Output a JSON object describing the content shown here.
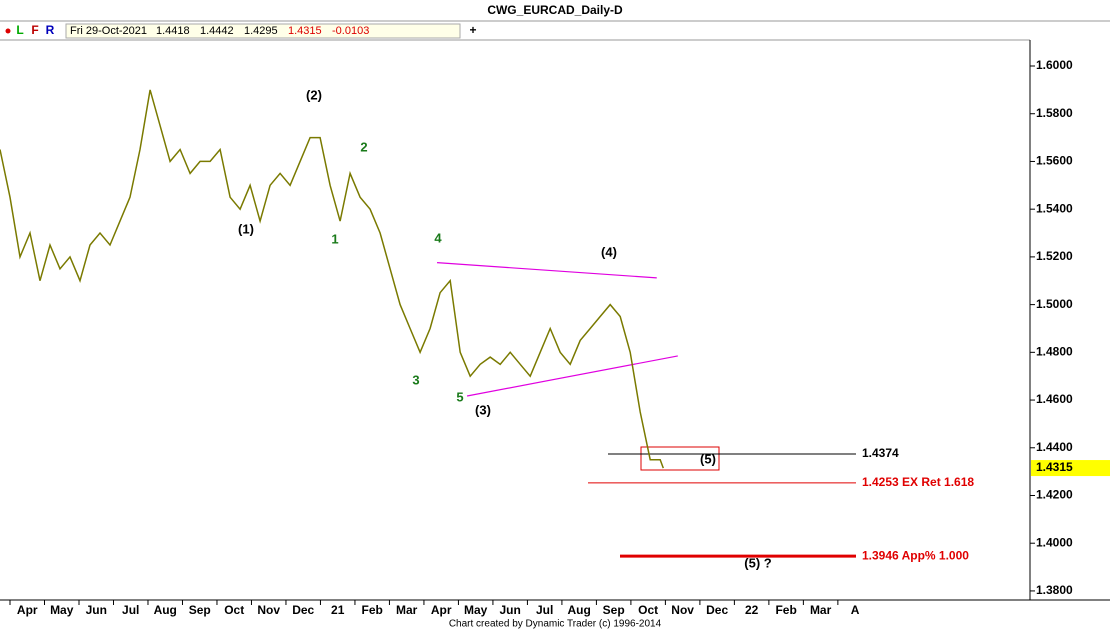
{
  "chart_data": {
    "type": "line",
    "title": "CWG_EURCAD_Daily-D",
    "toolbar": [
      "L",
      "F",
      "R"
    ],
    "info": {
      "date": "Fri 29-Oct-2021",
      "open": 1.4418,
      "high": 1.4442,
      "low": 1.4295,
      "close": 1.4315,
      "change": -0.0103
    },
    "x": [
      2.71,
      3.0,
      3.29,
      3.58,
      3.87,
      4.16,
      4.45,
      4.74,
      5.03,
      5.32,
      5.61,
      5.9,
      6.19,
      6.48,
      6.77,
      7.06,
      7.35,
      7.64,
      7.93,
      8.22,
      8.51,
      8.8,
      9.09,
      9.38,
      9.67,
      9.96,
      10.25,
      10.54,
      10.83,
      11.12,
      11.41,
      11.7,
      11.99,
      12.28,
      12.57,
      12.86,
      13.15,
      13.44,
      13.73,
      14.02,
      14.31,
      14.6,
      14.89,
      15.18,
      15.47,
      15.76,
      16.05,
      16.34,
      16.63,
      16.92,
      17.21,
      17.5,
      17.79,
      18.08,
      18.37,
      18.66,
      18.95,
      19.24,
      19.53,
      19.82,
      20.11,
      20.4,
      20.69,
      20.98,
      21.27,
      21.56,
      21.85,
      21.94
    ],
    "values": [
      1.565,
      1.545,
      1.52,
      1.53,
      1.51,
      1.525,
      1.515,
      1.52,
      1.51,
      1.525,
      1.53,
      1.525,
      1.535,
      1.545,
      1.565,
      1.59,
      1.575,
      1.56,
      1.565,
      1.555,
      1.56,
      1.56,
      1.565,
      1.545,
      1.54,
      1.55,
      1.535,
      1.55,
      1.555,
      1.55,
      1.56,
      1.57,
      1.57,
      1.55,
      1.535,
      1.555,
      1.545,
      1.54,
      1.53,
      1.515,
      1.5,
      1.49,
      1.48,
      1.49,
      1.505,
      1.51,
      1.48,
      1.47,
      1.475,
      1.478,
      1.475,
      1.48,
      1.475,
      1.47,
      1.48,
      1.49,
      1.48,
      1.475,
      1.485,
      1.49,
      1.495,
      1.5,
      1.495,
      1.48,
      1.455,
      1.435,
      1.435,
      1.4315
    ],
    "color": "#7a7a00",
    "xlim": [
      2.71,
      32.57
    ],
    "xticks": [
      {
        "value": 3,
        "label": "Apr"
      },
      {
        "value": 4,
        "label": "May"
      },
      {
        "value": 5,
        "label": "Jun"
      },
      {
        "value": 6,
        "label": "Jul"
      },
      {
        "value": 7,
        "label": "Aug"
      },
      {
        "value": 8,
        "label": "Sep"
      },
      {
        "value": 9,
        "label": "Oct"
      },
      {
        "value": 10,
        "label": "Nov"
      },
      {
        "value": 11,
        "label": "Dec"
      },
      {
        "value": 12,
        "label": "21"
      },
      {
        "value": 13,
        "label": "Feb"
      },
      {
        "value": 14,
        "label": "Mar"
      },
      {
        "value": 15,
        "label": "Apr"
      },
      {
        "value": 16,
        "label": "May"
      },
      {
        "value": 17,
        "label": "Jun"
      },
      {
        "value": 18,
        "label": "Jul"
      },
      {
        "value": 19,
        "label": "Aug"
      },
      {
        "value": 20,
        "label": "Sep"
      },
      {
        "value": 21,
        "label": "Oct"
      },
      {
        "value": 22,
        "label": "Nov"
      },
      {
        "value": 23,
        "label": "Dec"
      },
      {
        "value": 24,
        "label": "22"
      },
      {
        "value": 25,
        "label": "Feb"
      },
      {
        "value": 26,
        "label": "Mar"
      },
      {
        "value": 27,
        "label": "A"
      }
    ],
    "ylim": [
      1.3762,
      1.6109
    ],
    "yticks": [
      {
        "value": 1.6,
        "label": "1.6000"
      },
      {
        "value": 1.58,
        "label": "1.5800"
      },
      {
        "value": 1.56,
        "label": "1.5600"
      },
      {
        "value": 1.54,
        "label": "1.5400"
      },
      {
        "value": 1.52,
        "label": "1.5200"
      },
      {
        "value": 1.5,
        "label": "1.5000"
      },
      {
        "value": 1.48,
        "label": "1.4800"
      },
      {
        "value": 1.46,
        "label": "1.4600"
      },
      {
        "value": 1.44,
        "label": "1.4400"
      },
      {
        "value": 1.42,
        "label": "1.4200"
      },
      {
        "value": 1.4,
        "label": "1.4000"
      },
      {
        "value": 1.38,
        "label": "1.3800"
      }
    ],
    "last_price": 1.4315,
    "levels": [
      {
        "value": 1.4374,
        "label": "1.4374",
        "color": "#000000"
      },
      {
        "value": 1.4253,
        "label": "1.4253 EX Ret 1.618",
        "color": "#e00000"
      },
      {
        "value": 1.3946,
        "label": "1.3946 App% 1.000",
        "color": "#e00000"
      }
    ],
    "trendlines": [
      {
        "x": [
          15.38,
          21.75
        ],
        "y": [
          1.5176,
          1.5112
        ],
        "color": "#e000e0"
      },
      {
        "x": [
          16.25,
          22.36
        ],
        "y": [
          1.4617,
          1.4785
        ],
        "color": "#e000e0"
      }
    ],
    "wave_labels": [
      {
        "text": "(1)",
        "color": "#000000"
      },
      {
        "text": "(2)",
        "color": "#000000"
      },
      {
        "text": "1",
        "color": "#1a7a1a"
      },
      {
        "text": "2",
        "color": "#1a7a1a"
      },
      {
        "text": "3",
        "color": "#1a7a1a"
      },
      {
        "text": "4",
        "color": "#1a7a1a"
      },
      {
        "text": "5",
        "color": "#1a7a1a"
      },
      {
        "text": "(3)",
        "color": "#000000"
      },
      {
        "text": "(4)",
        "color": "#000000"
      },
      {
        "text": "(5)",
        "color": "#000000"
      },
      {
        "text": "(5) ?",
        "color": "#000000"
      }
    ],
    "footer": "Chart created by Dynamic Trader  (c) 1996-2014"
  }
}
